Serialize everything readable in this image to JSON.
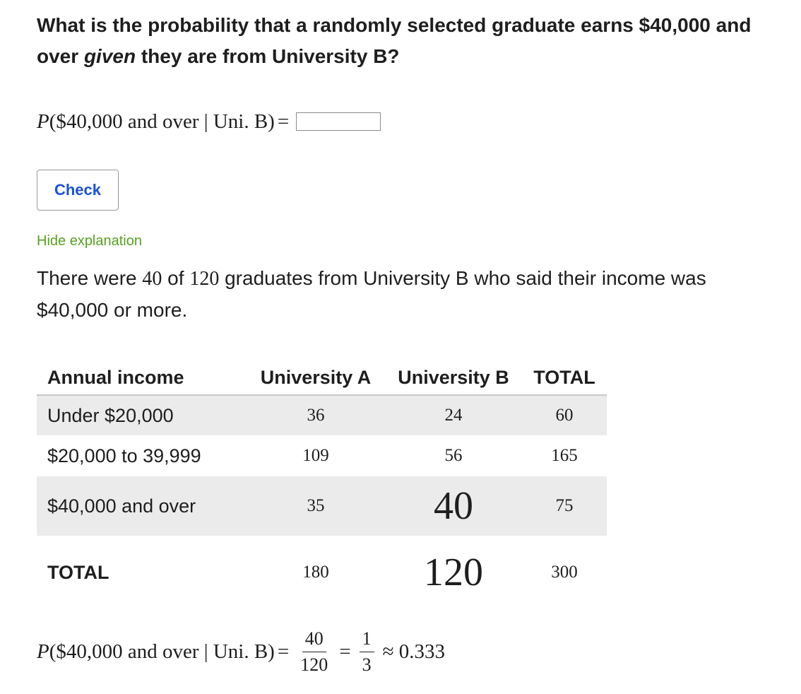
{
  "question": {
    "prefix": "What is the probability that a randomly selected graduate earns $40,000 and over ",
    "emphasis": "given",
    "suffix": " they are from University B?"
  },
  "equation1": {
    "var": "P",
    "argument": "($40,000 and over | Uni. B)",
    "equals": "=",
    "input_value": ""
  },
  "check_button": {
    "label": "Check"
  },
  "hide_explanation": {
    "label": "Hide explanation"
  },
  "explanation": {
    "part1": "There were ",
    "num1": "40",
    "part2": " of ",
    "num2": "120",
    "part3": " graduates from University B who said their income was $40,000 or more."
  },
  "table": {
    "headers": [
      "Annual income",
      "University A",
      "University B",
      "TOTAL"
    ],
    "rows": [
      {
        "label": "Under $20,000",
        "a": "36",
        "b": "24",
        "total": "60"
      },
      {
        "label": "$20,000 to 39,999",
        "a": "109",
        "b": "56",
        "total": "165"
      },
      {
        "label": "$40,000 and over",
        "a": "35",
        "b": "40",
        "total": "75"
      },
      {
        "label": "TOTAL",
        "a": "180",
        "b": "120",
        "total": "300"
      }
    ]
  },
  "equation2": {
    "var": "P",
    "argument": "($40,000 and over | Uni. B)",
    "equals1": "=",
    "frac1_num": "40",
    "frac1_den": "120",
    "equals2": "=",
    "frac2_num": "1",
    "frac2_den": "3",
    "approx": "≈ 0.333"
  }
}
